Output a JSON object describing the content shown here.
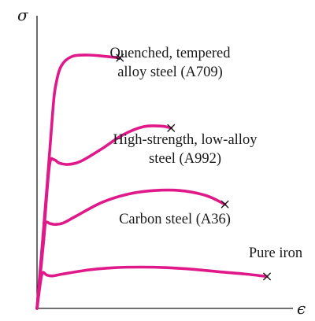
{
  "chart_data": {
    "type": "line",
    "title": "",
    "xlabel": "ϵ",
    "ylabel": "σ",
    "xlim": [
      0,
      100
    ],
    "ylim": [
      0,
      100
    ],
    "grid": false,
    "legend": "none",
    "curve_color": "#e0198a",
    "series": [
      {
        "name": "Quenched, tempered alloy steel (A709)",
        "label_lines": [
          "Quenched, tempered",
          "alloy steel (A709)"
        ],
        "points": [
          [
            0,
            0
          ],
          [
            3.9,
            45
          ],
          [
            6.1,
            72
          ],
          [
            7.1,
            80.5
          ],
          [
            9.3,
            88
          ],
          [
            13.5,
            91.5
          ],
          [
            20,
            92
          ],
          [
            25.5,
            91.6
          ],
          [
            31.9,
            91
          ]
        ],
        "fracture": [
          31.9,
          91
        ]
      },
      {
        "name": "High-strength, low-alloy steel (A992)",
        "label_lines": [
          "High-strength, low-alloy",
          "steel (A992)"
        ],
        "points": [
          [
            0,
            0
          ],
          [
            2.8,
            30
          ],
          [
            4.8,
            52
          ],
          [
            6.5,
            54
          ],
          [
            8.5,
            52.8
          ],
          [
            12,
            52.3
          ],
          [
            17,
            53.5
          ],
          [
            25,
            58
          ],
          [
            33,
            63
          ],
          [
            41,
            66
          ],
          [
            48,
            66.2
          ],
          [
            51.6,
            65.5
          ]
        ],
        "fracture": [
          51.6,
          65.5
        ]
      },
      {
        "name": "Carbon steel (A36)",
        "label_lines": [
          "Carbon steel (A36)"
        ],
        "points": [
          [
            0,
            0
          ],
          [
            2.6,
            25
          ],
          [
            3.3,
            31
          ],
          [
            5,
            30.8
          ],
          [
            7,
            30.5
          ],
          [
            10,
            31
          ],
          [
            15,
            33.5
          ],
          [
            25,
            38.5
          ],
          [
            35,
            41.5
          ],
          [
            45,
            42.8
          ],
          [
            55,
            42.8
          ],
          [
            65,
            41
          ],
          [
            72.3,
            37.8
          ]
        ],
        "fracture": [
          72.3,
          37.8
        ]
      },
      {
        "name": "Pure iron",
        "label_lines": [
          "Pure iron"
        ],
        "points": [
          [
            0,
            0
          ],
          [
            1.4,
            10
          ],
          [
            2.2,
            13
          ],
          [
            3.8,
            12.1
          ],
          [
            6,
            11.8
          ],
          [
            10,
            12.5
          ],
          [
            20,
            14
          ],
          [
            30,
            14.8
          ],
          [
            40,
            15
          ],
          [
            50,
            14.8
          ],
          [
            60,
            14.2
          ],
          [
            70,
            13.3
          ],
          [
            80,
            12.5
          ],
          [
            88.5,
            11.6
          ]
        ],
        "fracture": [
          88.5,
          11.6
        ]
      }
    ]
  }
}
